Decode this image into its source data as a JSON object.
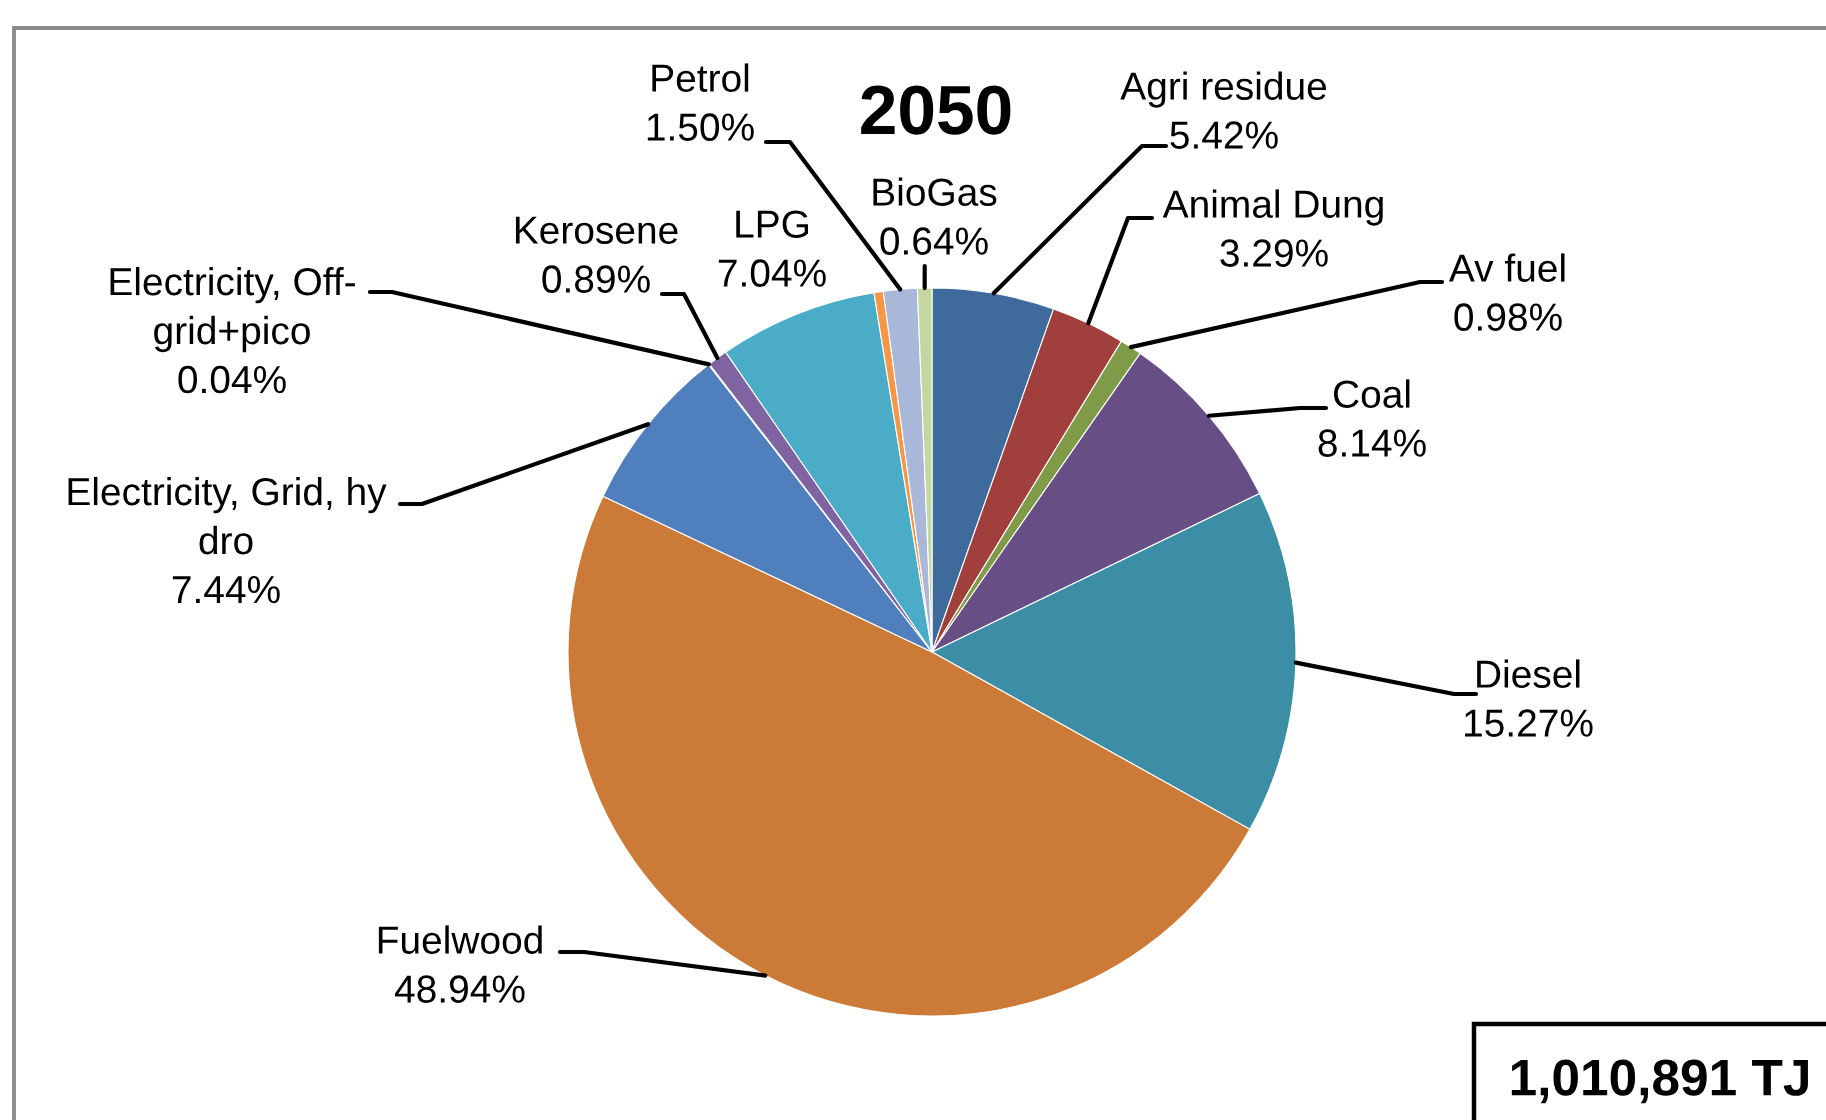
{
  "chart_data": {
    "type": "pie",
    "title": "2050",
    "categories": [
      "Agri residue",
      "Animal Dung",
      "Av fuel",
      "Coal",
      "Diesel",
      "Fuelwood",
      "Electricity, Grid, hy\ndro",
      "Electricity, Off-\ngrid+pico",
      "Kerosene",
      "LPG",
      null,
      "Petrol",
      "BioGas"
    ],
    "values": [
      5.42,
      3.29,
      0.98,
      8.14,
      15.27,
      48.94,
      7.44,
      0.04,
      0.89,
      7.04,
      0.41,
      1.5,
      0.64
    ],
    "value_labels": [
      "5.42%",
      "3.29%",
      "0.98%",
      "8.14%",
      "15.27%",
      "48.94%",
      "7.44%",
      "0.04%",
      "0.89%",
      "7.04%",
      null,
      "1.50%",
      "0.64%"
    ],
    "colors": [
      "#3e6b9c",
      "#a03f3b",
      "#7f9b48",
      "#674f86",
      "#3c8da6",
      "#cc7a38",
      "#4f80bd",
      "#c0504d",
      "#8064a2",
      "#4aacc6",
      "#f79646",
      "#a9b8d8",
      "#c4d7a0"
    ],
    "annotations": [
      "1,010,891 TJ"
    ]
  }
}
